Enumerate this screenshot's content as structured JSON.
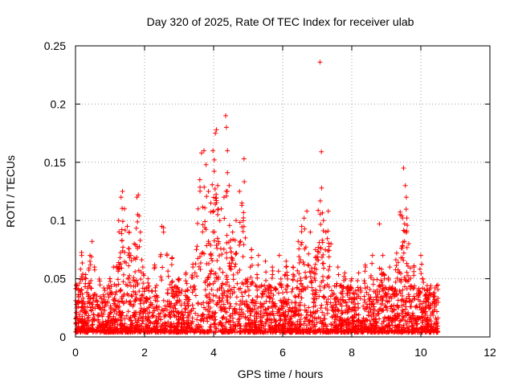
{
  "chart_data": {
    "type": "scatter",
    "title": "Day 320 of 2025, Rate Of TEC Index for receiver ulab",
    "xlabel": "GPS time / hours",
    "ylabel": "ROTI / TECUs",
    "xlim": [
      0,
      12
    ],
    "ylim": [
      0,
      0.25
    ],
    "x_ticks": [
      0,
      2,
      4,
      6,
      8,
      10,
      12
    ],
    "y_ticks": [
      0,
      0.05,
      0.1,
      0.15,
      0.2,
      0.25
    ],
    "x_tick_labels": [
      "0",
      "2",
      "4",
      "6",
      "8",
      "10",
      "12"
    ],
    "y_tick_labels": [
      "0",
      "0.05",
      "0.1",
      "0.15",
      "0.2",
      "0.25"
    ],
    "grid": true,
    "legend": "none",
    "marker": "plus",
    "color": "#ff0000",
    "x_data_range": [
      0,
      10.5
    ],
    "points": [
      [
        0.05,
        0.03
      ],
      [
        0.12,
        0.04
      ],
      [
        0.18,
        0.07
      ],
      [
        0.3,
        0.05
      ],
      [
        0.42,
        0.065
      ],
      [
        0.48,
        0.082
      ],
      [
        0.55,
        0.06
      ],
      [
        0.7,
        0.048
      ],
      [
        0.85,
        0.04
      ],
      [
        1.0,
        0.05
      ],
      [
        1.1,
        0.06
      ],
      [
        1.25,
        0.1
      ],
      [
        1.32,
        0.12
      ],
      [
        1.36,
        0.125
      ],
      [
        1.42,
        0.11
      ],
      [
        1.5,
        0.095
      ],
      [
        1.55,
        0.09
      ],
      [
        1.6,
        0.07
      ],
      [
        1.7,
        0.08
      ],
      [
        1.78,
        0.12
      ],
      [
        1.82,
        0.122
      ],
      [
        1.88,
        0.09
      ],
      [
        1.95,
        0.06
      ],
      [
        2.1,
        0.05
      ],
      [
        2.3,
        0.06
      ],
      [
        2.5,
        0.095
      ],
      [
        2.55,
        0.09
      ],
      [
        2.65,
        0.07
      ],
      [
        2.8,
        0.068
      ],
      [
        3.0,
        0.05
      ],
      [
        3.2,
        0.055
      ],
      [
        3.4,
        0.06
      ],
      [
        3.5,
        0.075
      ],
      [
        3.55,
        0.11
      ],
      [
        3.6,
        0.135
      ],
      [
        3.65,
        0.158
      ],
      [
        3.72,
        0.16
      ],
      [
        3.78,
        0.148
      ],
      [
        3.85,
        0.125
      ],
      [
        3.92,
        0.115
      ],
      [
        3.98,
        0.16
      ],
      [
        4.02,
        0.152
      ],
      [
        4.05,
        0.175
      ],
      [
        4.08,
        0.178
      ],
      [
        4.12,
        0.13
      ],
      [
        4.18,
        0.1
      ],
      [
        4.22,
        0.11
      ],
      [
        4.3,
        0.12
      ],
      [
        4.35,
        0.19
      ],
      [
        4.37,
        0.18
      ],
      [
        4.4,
        0.16
      ],
      [
        4.45,
        0.13
      ],
      [
        4.55,
        0.09
      ],
      [
        4.65,
        0.1
      ],
      [
        4.75,
        0.125
      ],
      [
        4.82,
        0.115
      ],
      [
        4.88,
        0.153
      ],
      [
        4.92,
        0.085
      ],
      [
        5.1,
        0.075
      ],
      [
        5.3,
        0.07
      ],
      [
        5.5,
        0.065
      ],
      [
        5.7,
        0.06
      ],
      [
        5.9,
        0.07
      ],
      [
        6.1,
        0.065
      ],
      [
        6.3,
        0.06
      ],
      [
        6.45,
        0.082
      ],
      [
        6.55,
        0.095
      ],
      [
        6.62,
        0.102
      ],
      [
        6.7,
        0.108
      ],
      [
        6.8,
        0.09
      ],
      [
        6.95,
        0.075
      ],
      [
        7.08,
        0.236
      ],
      [
        7.12,
        0.159
      ],
      [
        7.18,
        0.1
      ],
      [
        7.25,
        0.09
      ],
      [
        7.32,
        0.108
      ],
      [
        7.4,
        0.08
      ],
      [
        7.6,
        0.06
      ],
      [
        7.8,
        0.055
      ],
      [
        8.0,
        0.05
      ],
      [
        8.2,
        0.055
      ],
      [
        8.4,
        0.06
      ],
      [
        8.6,
        0.07
      ],
      [
        8.8,
        0.097
      ],
      [
        8.9,
        0.07
      ],
      [
        9.1,
        0.06
      ],
      [
        9.3,
        0.072
      ],
      [
        9.4,
        0.105
      ],
      [
        9.45,
        0.104
      ],
      [
        9.5,
        0.145
      ],
      [
        9.55,
        0.13
      ],
      [
        9.58,
        0.12
      ],
      [
        9.65,
        0.08
      ],
      [
        9.8,
        0.06
      ],
      [
        10.0,
        0.07
      ],
      [
        10.05,
        0.05
      ],
      [
        10.2,
        0.04
      ],
      [
        10.4,
        0.035
      ]
    ]
  }
}
